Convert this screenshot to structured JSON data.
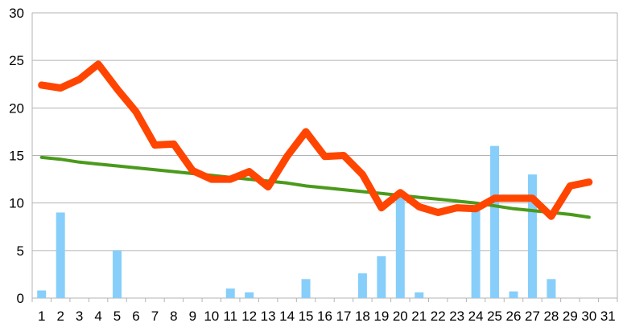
{
  "chart_data": {
    "type": "bar",
    "categories": [
      "1",
      "2",
      "3",
      "4",
      "5",
      "6",
      "7",
      "8",
      "9",
      "10",
      "11",
      "12",
      "13",
      "14",
      "15",
      "16",
      "17",
      "18",
      "19",
      "20",
      "21",
      "22",
      "23",
      "24",
      "25",
      "26",
      "27",
      "28",
      "29",
      "30",
      "31"
    ],
    "series": [
      {
        "kind": "bar",
        "color": "#87cefa",
        "values": [
          0.8,
          9.0,
          0,
          0,
          5.0,
          0,
          0,
          0,
          0,
          0,
          1.0,
          0.6,
          0,
          0,
          2.0,
          0,
          0,
          2.6,
          4.4,
          11.0,
          0.6,
          0,
          0,
          9.5,
          16.0,
          0.7,
          13.0,
          2.0,
          0,
          0,
          0
        ]
      },
      {
        "kind": "line",
        "color": "#ff4500",
        "values": [
          22.4,
          22.1,
          23.0,
          24.6,
          22.0,
          19.6,
          16.1,
          16.2,
          13.4,
          12.5,
          12.5,
          13.3,
          11.7,
          14.9,
          17.5,
          14.9,
          15.0,
          13.0,
          9.5,
          11.1,
          9.6,
          9.0,
          9.5,
          9.4,
          10.5,
          10.5,
          10.5,
          8.6,
          11.8,
          12.2,
          null
        ]
      },
      {
        "kind": "line",
        "color": "#4a9a1c",
        "values": [
          14.8,
          14.6,
          14.3,
          14.1,
          13.9,
          13.7,
          13.5,
          13.3,
          13.1,
          12.9,
          12.7,
          12.5,
          12.3,
          12.1,
          11.8,
          11.6,
          11.4,
          11.2,
          11.0,
          10.8,
          10.6,
          10.4,
          10.2,
          10.0,
          9.7,
          9.4,
          9.2,
          9.0,
          8.8,
          8.5,
          null
        ]
      }
    ],
    "yticks": [
      "0",
      "5",
      "10",
      "15",
      "20",
      "25",
      "30"
    ],
    "ylim": [
      0,
      30
    ],
    "grid": true,
    "title": "",
    "xlabel": "",
    "ylabel": ""
  }
}
